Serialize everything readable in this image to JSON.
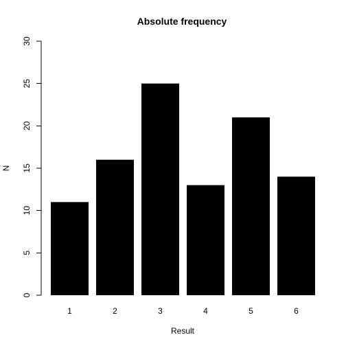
{
  "chart_data": {
    "type": "bar",
    "title": "Absolute frequency",
    "xlabel": "Result",
    "ylabel": "N",
    "categories": [
      "1",
      "2",
      "3",
      "4",
      "5",
      "6"
    ],
    "values": [
      11,
      16,
      25,
      13,
      21,
      14
    ],
    "ylim": [
      0,
      30
    ],
    "yticks": [
      0,
      5,
      10,
      15,
      20,
      25,
      30
    ],
    "bar_color": "#000000",
    "grid": false,
    "legend": "none"
  }
}
